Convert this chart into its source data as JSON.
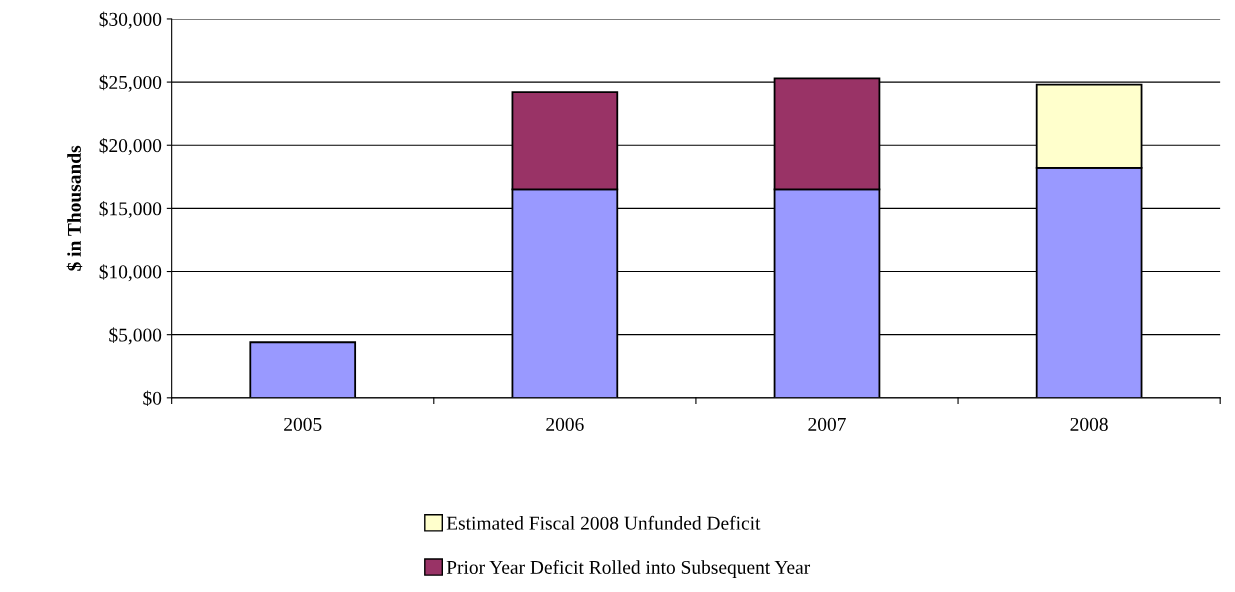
{
  "chart_data": {
    "type": "bar",
    "stacked": true,
    "ylabel": "$ in Thousands",
    "categories": [
      "2005",
      "2006",
      "2007",
      "2008"
    ],
    "series": [
      {
        "color": "#9999ff",
        "values": [
          4400,
          16500,
          16500,
          18200
        ]
      },
      {
        "name": "Prior Year Deficit Rolled into Subsequent Year",
        "color": "#993366",
        "values": [
          null,
          7700,
          8800,
          null
        ]
      },
      {
        "name": "Estimated Fiscal 2008 Unfunded Deficit",
        "color": "#ffffcc",
        "values": [
          null,
          null,
          null,
          6600
        ]
      }
    ],
    "ylim": [
      0,
      30000
    ],
    "yticks": [
      {
        "value": 0,
        "label": "$0"
      },
      {
        "value": 5000,
        "label": "$5,000"
      },
      {
        "value": 10000,
        "label": "$10,000"
      },
      {
        "value": 15000,
        "label": "$15,000"
      },
      {
        "value": 20000,
        "label": "$20,000"
      },
      {
        "value": 25000,
        "label": "$25,000"
      },
      {
        "value": 30000,
        "label": "$30,000"
      }
    ],
    "grid": "y",
    "legend": "bottom"
  }
}
